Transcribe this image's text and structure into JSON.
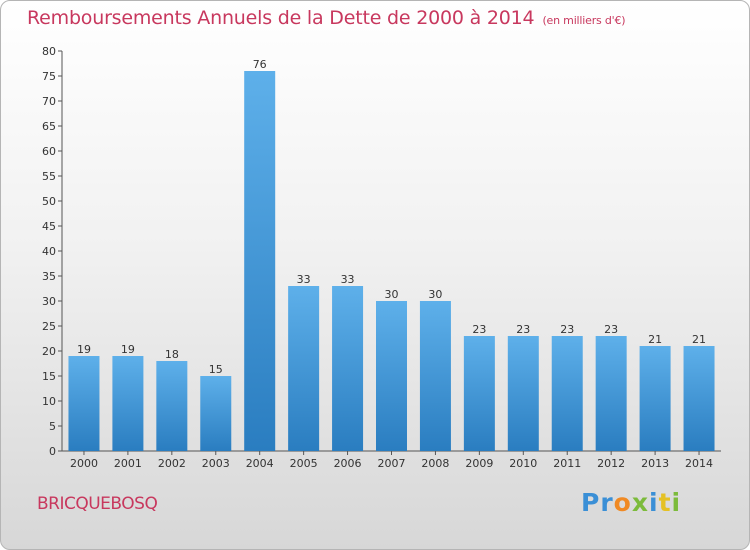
{
  "chart_data": {
    "type": "bar",
    "title": "Remboursements Annuels de la Dette de 2000 à 2014",
    "subtitle": "(en milliers d'€)",
    "categories": [
      "2000",
      "2001",
      "2002",
      "2003",
      "2004",
      "2005",
      "2006",
      "2007",
      "2008",
      "2009",
      "2010",
      "2011",
      "2012",
      "2013",
      "2014"
    ],
    "values": [
      19,
      19,
      18,
      15,
      76,
      33,
      33,
      30,
      30,
      23,
      23,
      23,
      23,
      21,
      21
    ],
    "ylim": [
      0,
      80
    ],
    "yticks": [
      0,
      5,
      10,
      15,
      20,
      25,
      30,
      35,
      40,
      45,
      50,
      55,
      60,
      65,
      70,
      75,
      80
    ],
    "grid": false,
    "legend": "none",
    "colors": {
      "bar_top": "#5eb0ea",
      "bar_bottom": "#2a7dc0",
      "title": "#c8385e"
    }
  },
  "footer": {
    "commune": "BRICQUEBOSQ",
    "logo": {
      "parts": [
        "Pr",
        "o",
        "x",
        "i",
        "t",
        "i"
      ]
    }
  }
}
